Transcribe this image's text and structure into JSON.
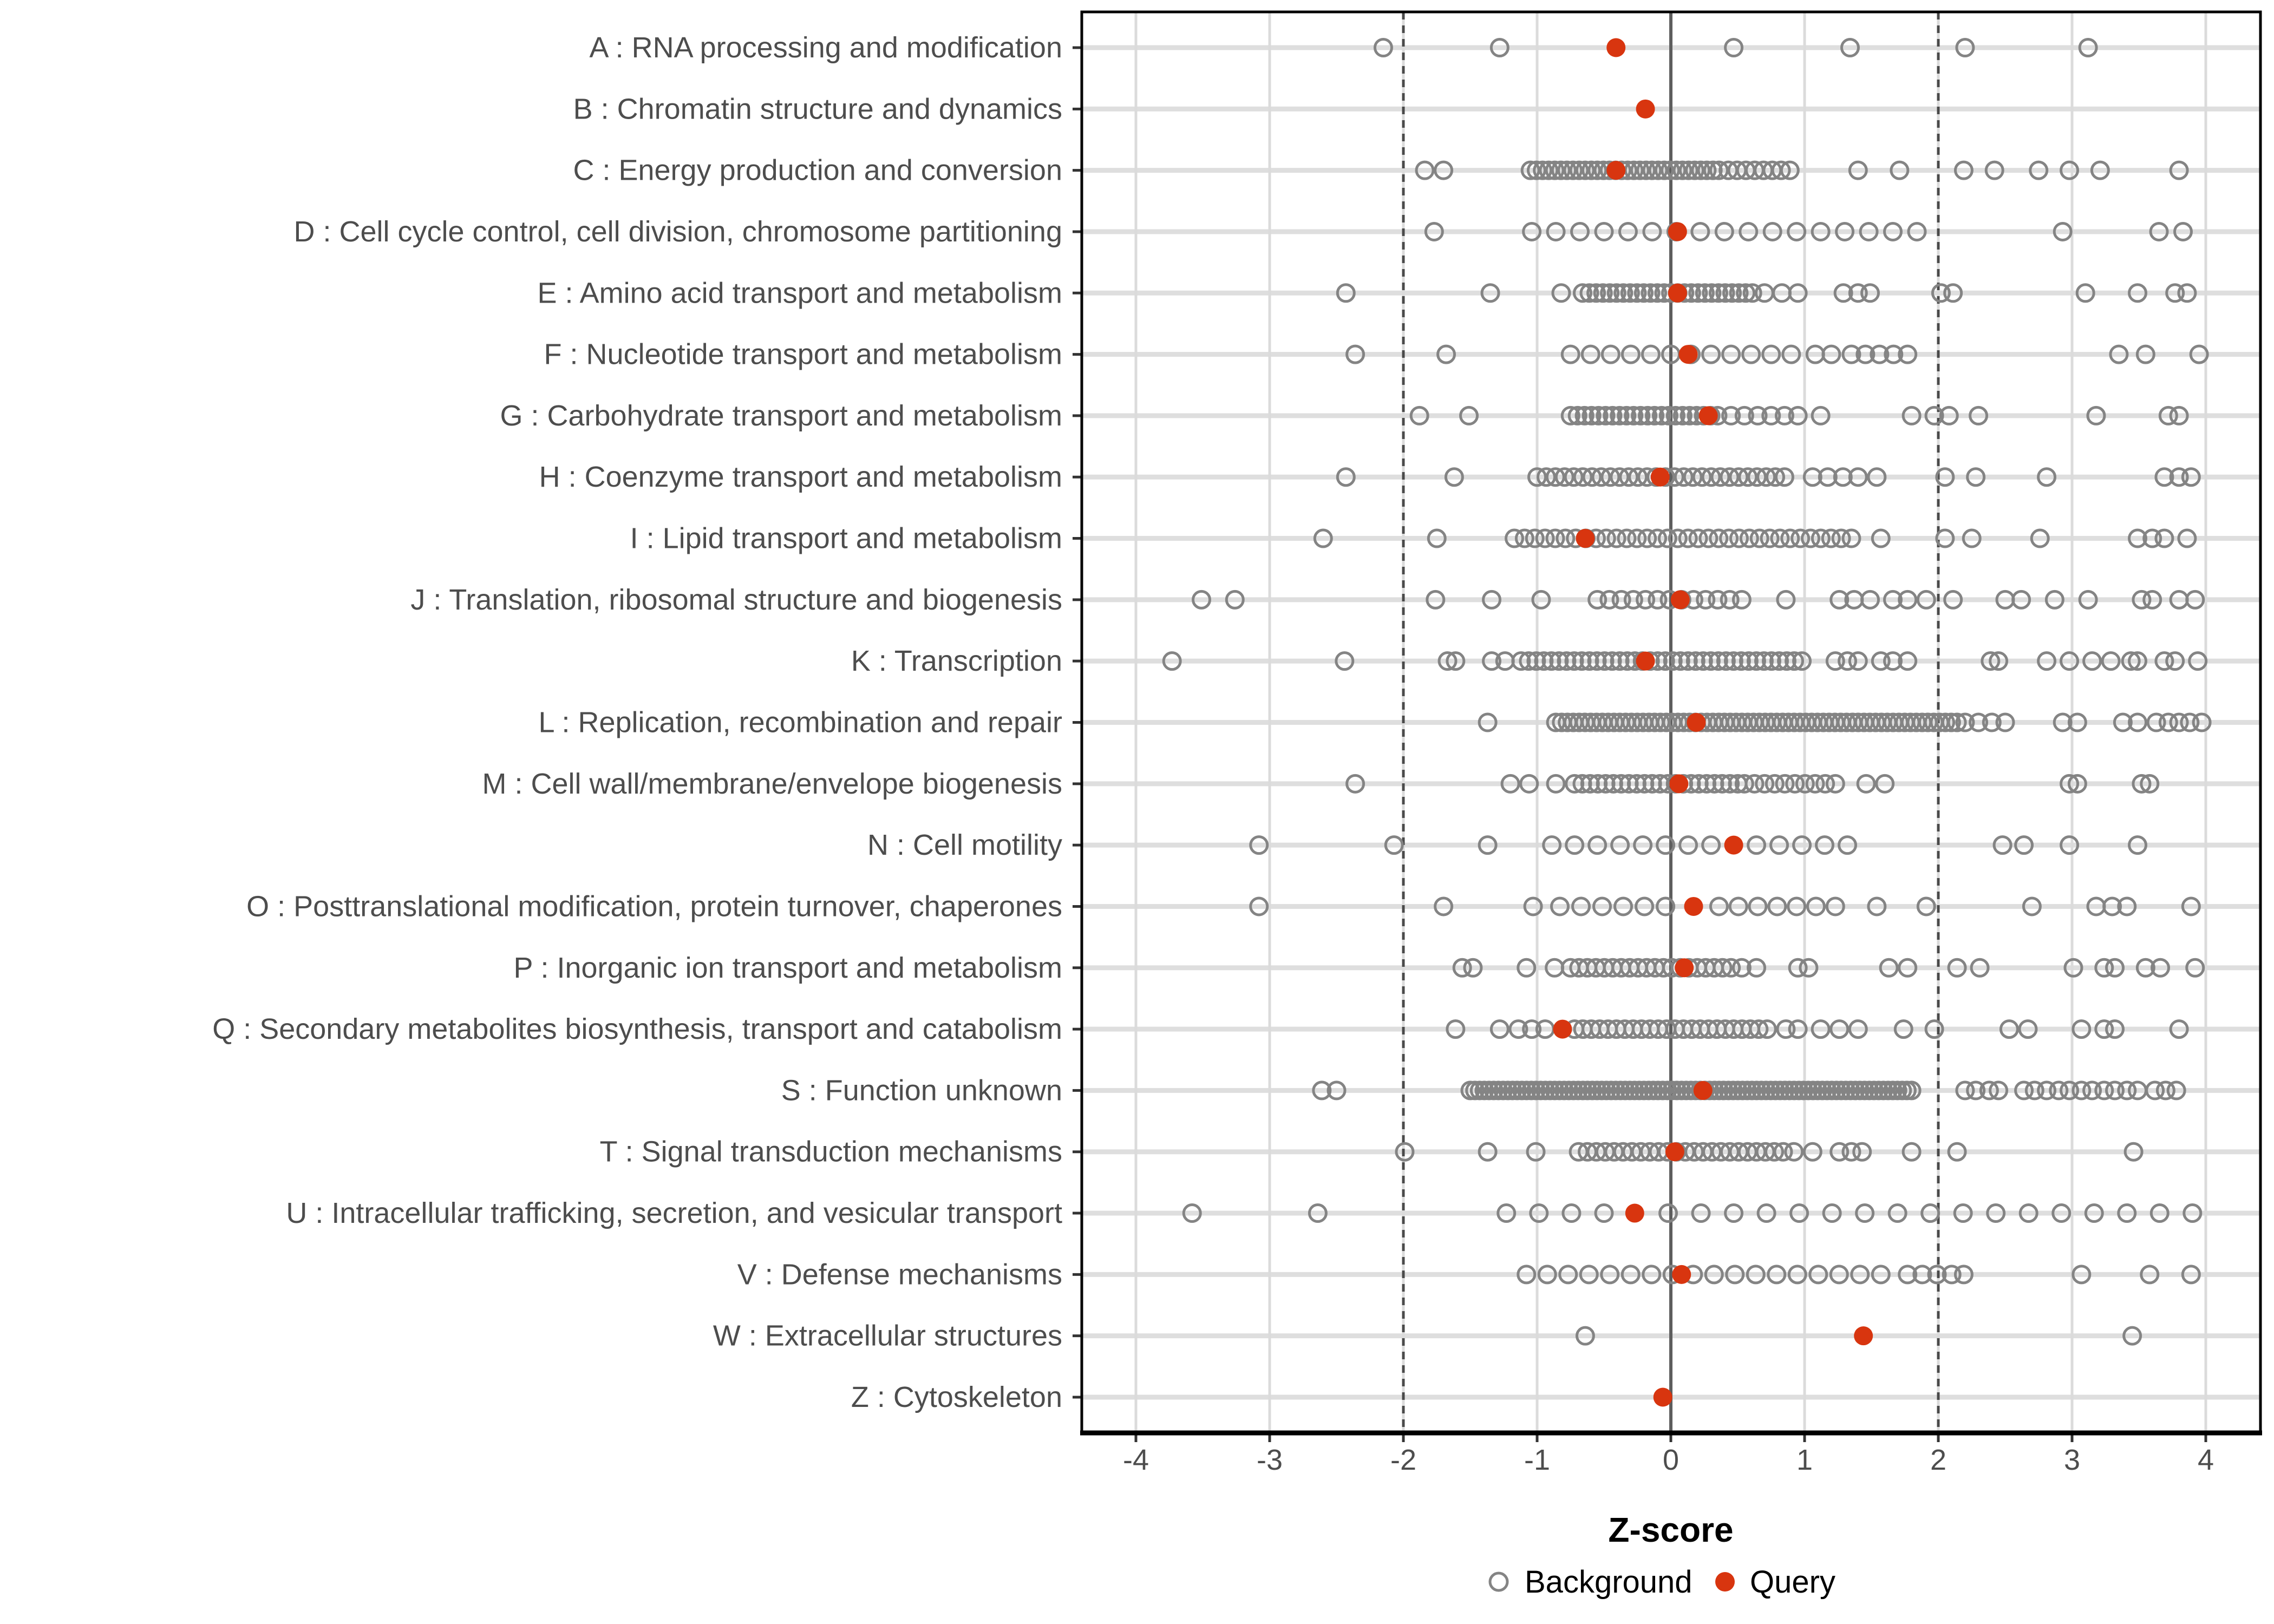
{
  "chart_data": {
    "type": "scatter",
    "orientation": "horizontal-strip",
    "title": "",
    "xlabel": "Z-score",
    "xlim": [
      -4.4,
      4.4
    ],
    "x_ticks": [
      -4,
      -3,
      -2,
      -1,
      0,
      1,
      2,
      3,
      4
    ],
    "grid": true,
    "reference_lines": {
      "zero_solid": 0,
      "dashed": [
        -2,
        2
      ]
    },
    "legend": {
      "position": "bottom",
      "background_label": "Background",
      "query_label": "Query"
    },
    "colors": {
      "query": "#D8350F",
      "background_stroke": "#848484",
      "stripe": "#DEDEDE",
      "grid": "#DBDBDB",
      "zero_line": "#5E5E5E",
      "threshold_line": "#4A4A4A",
      "axis": "#000000",
      "tick_label": "#4D4D4D",
      "category_label": "#4D4D4D",
      "legend_text": "#000000"
    },
    "categories": [
      {
        "label": "A : RNA processing and modification",
        "query": -0.41,
        "background": [
          -2.15,
          -1.28,
          0.47,
          1.34,
          2.2,
          3.12
        ],
        "background_runs": []
      },
      {
        "label": "B : Chromatin structure and dynamics",
        "query": -0.19,
        "background": [],
        "background_runs": []
      },
      {
        "label": "C : Energy production and conversion",
        "query": -0.41,
        "background": [
          -1.84,
          -1.7,
          1.4,
          1.71,
          2.19,
          2.42,
          2.75,
          2.98,
          3.21,
          3.8
        ],
        "background_runs": [
          [
            -1.05,
            0.36,
            32
          ],
          [
            0.43,
            0.89,
            8
          ]
        ]
      },
      {
        "label": "D : Cell cycle control, cell division, chromosome partitioning",
        "query": 0.05,
        "background": [
          -1.77,
          2.93,
          3.65,
          3.83
        ],
        "background_runs": [
          [
            -1.04,
            1.84,
            17
          ]
        ]
      },
      {
        "label": "E : Amino acid transport and metabolism",
        "query": 0.05,
        "background": [
          -2.43,
          -1.35,
          -0.82,
          0.7,
          0.83,
          0.95,
          1.29,
          1.4,
          1.49,
          2.02,
          2.11,
          3.1,
          3.49,
          3.77,
          3.86
        ],
        "background_runs": [
          [
            -0.66,
            0.61,
            26
          ]
        ]
      },
      {
        "label": "F : Nucleotide transport and metabolism",
        "query": 0.13,
        "background": [
          -2.36,
          -1.68,
          1.08,
          1.2,
          3.35,
          3.55,
          3.95
        ],
        "background_runs": [
          [
            -0.75,
            0.9,
            12
          ],
          [
            1.35,
            1.77,
            5
          ]
        ]
      },
      {
        "label": "G : Carbohydrate transport and metabolism",
        "query": 0.28,
        "background": [
          -1.88,
          -1.51,
          0.95,
          1.12,
          1.8,
          1.97,
          2.08,
          2.3,
          3.18,
          3.72,
          3.8
        ],
        "background_runs": [
          [
            -0.75,
            0.35,
            22
          ],
          [
            0.45,
            0.85,
            5
          ]
        ]
      },
      {
        "label": "H : Coenzyme transport and metabolism",
        "query": -0.08,
        "background": [
          -2.43,
          -1.62,
          1.54,
          2.05,
          2.28,
          2.81,
          3.69,
          3.8,
          3.89
        ],
        "background_runs": [
          [
            -1.0,
            0.85,
            28
          ],
          [
            1.06,
            1.4,
            4
          ]
        ]
      },
      {
        "label": "I : Lipid transport and metabolism",
        "query": -0.64,
        "background": [
          -2.6,
          -1.75,
          1.57,
          2.05,
          2.25,
          2.76,
          3.49,
          3.6,
          3.69,
          3.86
        ],
        "background_runs": [
          [
            -1.17,
            1.35,
            34
          ]
        ]
      },
      {
        "label": "J : Translation, ribosomal structure and biogenesis",
        "query": 0.07,
        "background": [
          -3.51,
          -3.26,
          -1.76,
          -1.34,
          -0.97,
          0.86,
          1.26,
          1.37,
          1.49,
          1.66,
          1.77,
          1.91,
          2.11,
          2.5,
          2.62,
          2.87,
          3.12,
          3.52,
          3.6,
          3.8,
          3.92
        ],
        "background_runs": [
          [
            -0.55,
            0.53,
            13
          ]
        ]
      },
      {
        "label": "K : Transcription",
        "query": -0.19,
        "background": [
          -3.73,
          -2.44,
          -1.67,
          -1.61,
          -1.34,
          -1.24,
          1.23,
          1.32,
          1.4,
          1.57,
          1.66,
          1.77,
          2.39,
          2.45,
          2.81,
          2.98,
          3.15,
          3.29,
          3.44,
          3.49,
          3.69,
          3.77,
          3.94
        ],
        "background_runs": [
          [
            -1.12,
            0.98,
            38
          ]
        ]
      },
      {
        "label": "L : Replication, recombination and repair",
        "query": 0.19,
        "background": [
          -1.37,
          2.2,
          2.3,
          2.4,
          2.5,
          2.93,
          3.04,
          3.38,
          3.49,
          3.63,
          3.72,
          3.8,
          3.88,
          3.97
        ],
        "background_runs": [
          [
            -0.86,
            2.14,
            70
          ]
        ]
      },
      {
        "label": "M : Cell wall/membrane/envelope biogenesis",
        "query": 0.06,
        "background": [
          -2.36,
          -1.2,
          -1.06,
          -0.86,
          1.46,
          1.6,
          2.98,
          3.04,
          3.52,
          3.58
        ],
        "background_runs": [
          [
            -0.72,
            0.5,
            22
          ],
          [
            0.55,
            1.23,
            10
          ]
        ]
      },
      {
        "label": "N : Cell motility",
        "query": 0.47,
        "background": [
          -3.08,
          -2.07,
          -1.37,
          2.48,
          2.64,
          2.98,
          3.49
        ],
        "background_runs": [
          [
            -0.89,
            -0.04,
            6
          ],
          [
            0.13,
            0.3,
            2
          ],
          [
            0.64,
            1.32,
            5
          ]
        ]
      },
      {
        "label": "O : Posttranslational modification, protein turnover, chaperones",
        "query": 0.17,
        "background": [
          -3.08,
          -1.7,
          -1.03,
          1.54,
          1.91,
          2.7,
          3.18,
          3.3,
          3.41,
          3.89
        ],
        "background_runs": [
          [
            -0.83,
            -0.04,
            6
          ],
          [
            0.36,
            1.23,
            7
          ]
        ]
      },
      {
        "label": "P : Inorganic ion transport and metabolism",
        "query": 0.1,
        "background": [
          -1.56,
          -1.48,
          -1.08,
          -0.87,
          0.53,
          0.64,
          0.95,
          1.03,
          1.63,
          1.77,
          2.14,
          2.31,
          3.01,
          3.24,
          3.32,
          3.55,
          3.66,
          3.92
        ],
        "background_runs": [
          [
            -0.75,
            0.45,
            20
          ]
        ]
      },
      {
        "label": "Q : Secondary metabolites biosynthesis, transport and catabolism",
        "query": -0.81,
        "background": [
          -1.61,
          -1.28,
          -1.14,
          -1.04,
          -0.94,
          0.86,
          0.95,
          1.12,
          1.26,
          1.4,
          1.74,
          1.97,
          2.53,
          2.67,
          3.07,
          3.24,
          3.32,
          3.8
        ],
        "background_runs": [
          [
            -0.72,
            0.72,
            24
          ]
        ]
      },
      {
        "label": "S : Function unknown",
        "query": 0.24,
        "background": [
          -2.61,
          -2.5,
          2.2,
          2.28,
          2.38,
          2.45,
          2.64,
          2.72,
          2.81,
          2.9,
          2.98,
          3.07,
          3.15,
          3.24,
          3.32,
          3.41,
          3.49,
          3.62,
          3.7,
          3.78
        ],
        "background_runs": [
          [
            -1.5,
            1.8,
            95
          ]
        ]
      },
      {
        "label": "T : Signal transduction mechanisms",
        "query": 0.03,
        "background": [
          -1.99,
          -1.37,
          -1.01,
          0.92,
          1.06,
          1.26,
          1.35,
          1.43,
          1.8,
          2.14,
          3.46
        ],
        "background_runs": [
          [
            -0.69,
            0.84,
            24
          ]
        ]
      },
      {
        "label": "U : Intracellular trafficking, secretion, and vesicular transport",
        "query": -0.27,
        "background": [
          -3.58,
          -2.64
        ],
        "background_runs": [
          [
            -1.23,
            -0.5,
            4
          ],
          [
            -0.02,
            3.9,
            17
          ]
        ]
      },
      {
        "label": "V : Defense mechanisms",
        "query": 0.08,
        "background": [
          1.77,
          1.88,
          1.99,
          2.1,
          2.19,
          3.07,
          3.58,
          3.89
        ],
        "background_runs": [
          [
            -1.08,
            1.57,
            18
          ]
        ]
      },
      {
        "label": "W : Extracellular structures",
        "query": 1.44,
        "background": [
          -0.64,
          3.45
        ],
        "background_runs": []
      },
      {
        "label": "Z : Cytoskeleton",
        "query": -0.06,
        "background": [],
        "background_runs": []
      }
    ]
  }
}
